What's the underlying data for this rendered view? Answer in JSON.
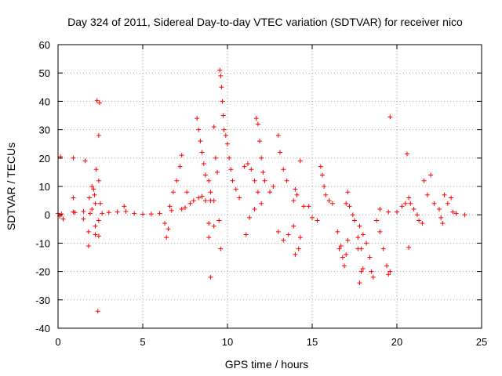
{
  "chart_data": {
    "type": "scatter",
    "title": "Day 324 of 2011, Sidereal Day-to-day VTEC variation (SDTVAR) for receiver nico",
    "xlabel": "GPS time / hours",
    "ylabel": "SDTVAR / TECUs",
    "xlim": [
      0,
      25
    ],
    "ylim": [
      -40,
      60
    ],
    "xticks": [
      0,
      5,
      10,
      15,
      20,
      25
    ],
    "yticks": [
      -40,
      -30,
      -20,
      -10,
      0,
      10,
      20,
      30,
      40,
      50,
      60
    ],
    "grid": true,
    "marker": "+",
    "color": "#ff0000",
    "series": [
      {
        "name": "SDTVAR",
        "points": [
          [
            0.0,
            0.5
          ],
          [
            0.1,
            -0.5
          ],
          [
            0.2,
            0.3
          ],
          [
            0.3,
            -1.5
          ],
          [
            0.15,
            20.5
          ],
          [
            0.9,
            20
          ],
          [
            0.9,
            6
          ],
          [
            0.9,
            1
          ],
          [
            1.0,
            0.8
          ],
          [
            1.5,
            1.2
          ],
          [
            1.5,
            -1.5
          ],
          [
            1.6,
            19
          ],
          [
            1.8,
            -6
          ],
          [
            1.8,
            -11
          ],
          [
            1.85,
            6
          ],
          [
            1.9,
            0.5
          ],
          [
            2.0,
            2
          ],
          [
            2.0,
            10
          ],
          [
            2.1,
            9
          ],
          [
            2.15,
            7
          ],
          [
            2.2,
            4
          ],
          [
            2.2,
            -4
          ],
          [
            2.2,
            -7
          ],
          [
            2.25,
            16
          ],
          [
            2.3,
            40.3
          ],
          [
            2.35,
            -34
          ],
          [
            2.4,
            28
          ],
          [
            2.4,
            12
          ],
          [
            2.45,
            39.5
          ],
          [
            2.4,
            -2
          ],
          [
            2.4,
            -7.5
          ],
          [
            2.5,
            4
          ],
          [
            2.6,
            0.5
          ],
          [
            3.0,
            0.8
          ],
          [
            3.5,
            1
          ],
          [
            3.9,
            3
          ],
          [
            4.0,
            1.2
          ],
          [
            4.5,
            0.5
          ],
          [
            5.0,
            0.2
          ],
          [
            5.5,
            0.3
          ],
          [
            6.0,
            0.5
          ],
          [
            6.3,
            -3
          ],
          [
            6.4,
            -8
          ],
          [
            6.5,
            -5
          ],
          [
            6.6,
            3
          ],
          [
            6.7,
            1.5
          ],
          [
            6.8,
            8
          ],
          [
            7.0,
            12
          ],
          [
            7.2,
            17
          ],
          [
            7.3,
            21
          ],
          [
            7.3,
            2
          ],
          [
            7.5,
            2.5
          ],
          [
            7.6,
            8
          ],
          [
            7.8,
            4
          ],
          [
            8.0,
            5
          ],
          [
            8.3,
            6
          ],
          [
            8.5,
            6.5
          ],
          [
            8.7,
            5
          ],
          [
            8.9,
            -3
          ],
          [
            8.9,
            -8
          ],
          [
            9.0,
            -22
          ],
          [
            9.2,
            -4
          ],
          [
            9.5,
            -2
          ],
          [
            9.6,
            -12
          ],
          [
            9.0,
            5
          ],
          [
            9.2,
            5
          ],
          [
            8.2,
            34
          ],
          [
            8.3,
            30
          ],
          [
            8.4,
            26
          ],
          [
            8.5,
            22
          ],
          [
            8.6,
            18
          ],
          [
            8.7,
            14
          ],
          [
            8.9,
            12
          ],
          [
            9.0,
            8
          ],
          [
            9.2,
            31
          ],
          [
            9.3,
            20
          ],
          [
            9.4,
            15
          ],
          [
            9.55,
            51
          ],
          [
            9.6,
            49
          ],
          [
            9.65,
            45
          ],
          [
            9.7,
            40
          ],
          [
            9.75,
            35
          ],
          [
            9.8,
            30
          ],
          [
            9.9,
            28
          ],
          [
            10.0,
            25
          ],
          [
            10.1,
            20
          ],
          [
            10.2,
            16
          ],
          [
            10.3,
            12
          ],
          [
            10.5,
            9
          ],
          [
            10.7,
            6
          ],
          [
            11.0,
            17
          ],
          [
            11.2,
            18
          ],
          [
            11.4,
            16
          ],
          [
            11.6,
            12
          ],
          [
            11.8,
            8
          ],
          [
            12.0,
            4
          ],
          [
            11.1,
            -7
          ],
          [
            11.3,
            -1
          ],
          [
            11.6,
            2
          ],
          [
            11.7,
            34
          ],
          [
            11.8,
            32
          ],
          [
            11.9,
            26
          ],
          [
            12.0,
            20
          ],
          [
            12.1,
            15
          ],
          [
            12.2,
            12
          ],
          [
            12.5,
            8
          ],
          [
            12.7,
            10
          ],
          [
            13.0,
            28
          ],
          [
            13.1,
            22
          ],
          [
            13.3,
            16
          ],
          [
            13.5,
            12
          ],
          [
            13.0,
            -6
          ],
          [
            13.3,
            -9
          ],
          [
            13.6,
            -7
          ],
          [
            13.9,
            -4
          ],
          [
            14.0,
            -14
          ],
          [
            14.2,
            -12
          ],
          [
            14.3,
            -8
          ],
          [
            13.9,
            5
          ],
          [
            14.0,
            9
          ],
          [
            14.1,
            7
          ],
          [
            14.3,
            19
          ],
          [
            14.5,
            3
          ],
          [
            14.8,
            3
          ],
          [
            15.0,
            -1
          ],
          [
            15.3,
            -2
          ],
          [
            15.5,
            17
          ],
          [
            15.6,
            14
          ],
          [
            15.7,
            10
          ],
          [
            15.8,
            7
          ],
          [
            16.0,
            5
          ],
          [
            16.2,
            4
          ],
          [
            16.5,
            -6
          ],
          [
            16.6,
            -12
          ],
          [
            16.7,
            -11
          ],
          [
            16.8,
            -15
          ],
          [
            16.9,
            -18
          ],
          [
            17.0,
            -14
          ],
          [
            17.1,
            -9
          ],
          [
            17.1,
            8
          ],
          [
            17.0,
            4
          ],
          [
            17.2,
            3
          ],
          [
            17.4,
            0
          ],
          [
            17.5,
            -2
          ],
          [
            17.8,
            -4
          ],
          [
            18.0,
            -7
          ],
          [
            18.2,
            -10
          ],
          [
            18.4,
            -15
          ],
          [
            18.5,
            -20
          ],
          [
            18.6,
            -22
          ],
          [
            17.8,
            -24
          ],
          [
            17.9,
            -20
          ],
          [
            18.0,
            -19
          ],
          [
            17.7,
            -8
          ],
          [
            17.7,
            -12
          ],
          [
            17.9,
            -12
          ],
          [
            18.8,
            -2
          ],
          [
            19.0,
            -6
          ],
          [
            19.2,
            -12
          ],
          [
            19.4,
            -18
          ],
          [
            19.5,
            -21
          ],
          [
            19.6,
            -20
          ],
          [
            19.6,
            34.5
          ],
          [
            19.0,
            2
          ],
          [
            19.5,
            1
          ],
          [
            20.0,
            1
          ],
          [
            20.3,
            3
          ],
          [
            20.5,
            4
          ],
          [
            20.6,
            21.5
          ],
          [
            20.7,
            -11.5
          ],
          [
            20.7,
            6
          ],
          [
            20.8,
            4
          ],
          [
            21.0,
            2
          ],
          [
            21.2,
            0
          ],
          [
            21.3,
            -2
          ],
          [
            21.5,
            -3
          ],
          [
            21.6,
            12
          ],
          [
            21.8,
            7
          ],
          [
            22.0,
            14
          ],
          [
            22.2,
            4
          ],
          [
            22.5,
            2
          ],
          [
            22.6,
            -1
          ],
          [
            22.7,
            -3
          ],
          [
            22.8,
            7
          ],
          [
            23.0,
            4
          ],
          [
            23.2,
            6
          ],
          [
            23.3,
            1
          ],
          [
            23.5,
            0.5
          ],
          [
            24.0,
            0
          ]
        ]
      }
    ]
  }
}
